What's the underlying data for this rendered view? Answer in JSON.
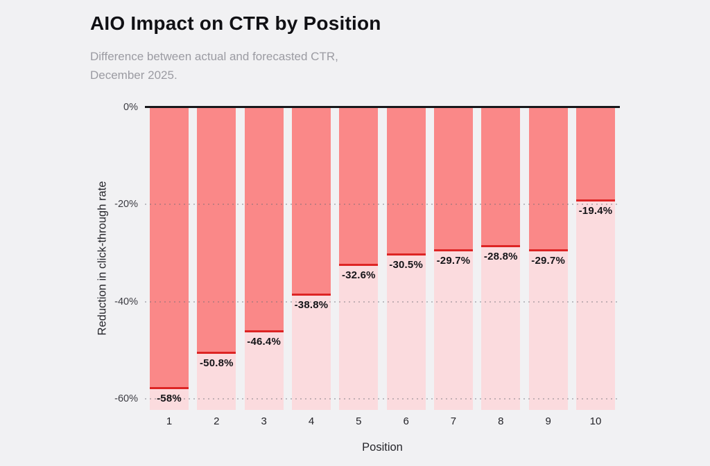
{
  "page": {
    "background": "#f1f1f3"
  },
  "header": {
    "title": "AIO Impact on CTR by Position",
    "subtitle_line1": "Difference between actual and forecasted CTR,",
    "subtitle_line2": "December 2025."
  },
  "chart_data": {
    "type": "bar",
    "title": "AIO Impact on CTR by Position",
    "subtitle": "Difference between actual and forecasted CTR, December 2025.",
    "xlabel": "Position",
    "ylabel": "Reduction in click-through rate",
    "categories": [
      "1",
      "2",
      "3",
      "4",
      "5",
      "6",
      "7",
      "8",
      "9",
      "10"
    ],
    "values": [
      -58,
      -50.8,
      -46.4,
      -38.8,
      -32.6,
      -30.5,
      -29.7,
      -28.8,
      -29.7,
      -19.4
    ],
    "value_labels": [
      "-58%",
      "-50.8%",
      "-46.4%",
      "-38.8%",
      "-32.6%",
      "-30.5%",
      "-29.7%",
      "-28.8%",
      "-29.7%",
      "-19.4%"
    ],
    "yticks": [
      {
        "label": "0%",
        "value": 0
      },
      {
        "label": "-20%",
        "value": -20
      },
      {
        "label": "-40%",
        "value": -40
      },
      {
        "label": "-60%",
        "value": -60
      }
    ],
    "ylim": [
      -62.3,
      0
    ],
    "grid": "dotted horizontal lines at -20, -40, -60",
    "legend": "none",
    "colors": {
      "bar_fill": "#fa8888",
      "bar_track": "#fbdbde",
      "marker_line": "#dd2424",
      "axis_line": "#17171a",
      "background": "#f1f1f3",
      "subtitle_text": "#9b9ba2",
      "label_text": "#141418"
    }
  }
}
